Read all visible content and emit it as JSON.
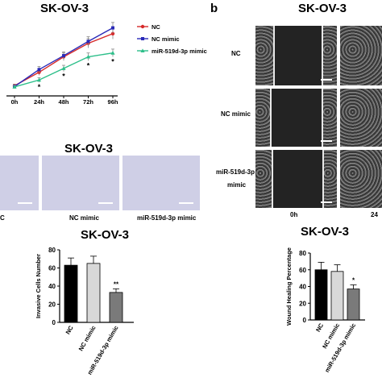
{
  "panel_b_letter": "b",
  "top_left_title": "SK-OV-3",
  "top_right_title": "SK-OV-3",
  "transwell_title": "SK-OV-3",
  "transwell_labels": [
    "C",
    "NC mimic",
    "miR-519d-3p mimic"
  ],
  "wound_row_labels": [
    "NC",
    "NC mimic",
    "miR-519d-3p",
    "mimic"
  ],
  "wound_time_labels": [
    "0h",
    "24"
  ],
  "colors": {
    "nc": "#d62a2a",
    "nc_mimic": "#2a2ab8",
    "mir": "#2dbf8a",
    "bar_black": "#000000",
    "bar_light": "#d8d8d8",
    "bar_gray": "#7a7a7a"
  },
  "chart_data": [
    {
      "type": "line",
      "title": "SK-OV-3",
      "x": [
        "0h",
        "24h",
        "48h",
        "72h",
        "96h"
      ],
      "series": [
        {
          "name": "NC",
          "values": [
            0.2,
            0.55,
            0.95,
            1.3,
            1.55
          ],
          "errors": [
            0.04,
            0.08,
            0.1,
            0.12,
            0.14
          ]
        },
        {
          "name": "NC mimic",
          "values": [
            0.18,
            0.62,
            0.98,
            1.35,
            1.7
          ],
          "errors": [
            0.04,
            0.08,
            0.1,
            0.12,
            0.14
          ]
        },
        {
          "name": "miR-519d-3p mimic",
          "values": [
            0.17,
            0.35,
            0.65,
            0.95,
            1.05
          ],
          "errors": [
            0.03,
            0.06,
            0.08,
            0.1,
            0.1
          ]
        }
      ],
      "significance": [
        "",
        "*",
        "*",
        "*",
        "*"
      ],
      "ylim": [
        0,
        1.9
      ]
    },
    {
      "type": "bar",
      "title": "SK-OV-3",
      "categories": [
        "NC",
        "NC mimic",
        "miR-519d-3p mimic"
      ],
      "values": [
        63,
        65,
        33
      ],
      "errors": [
        8,
        8,
        4
      ],
      "significance": [
        "",
        "",
        "**"
      ],
      "ylabel": "Invasive Cells Number",
      "yticks": [
        0,
        20,
        40,
        60,
        80
      ],
      "ylim": [
        0,
        80
      ]
    },
    {
      "type": "bar",
      "title": "SK-OV-3",
      "categories": [
        "NC",
        "NC mimic",
        "miR-519d-3p mimic"
      ],
      "values": [
        60,
        58,
        37
      ],
      "errors": [
        9,
        8,
        5
      ],
      "significance": [
        "",
        "",
        "*"
      ],
      "ylabel": "Wound Healing Percentage",
      "yticks": [
        0,
        20,
        40,
        60,
        80
      ],
      "ylim": [
        0,
        80
      ]
    }
  ]
}
